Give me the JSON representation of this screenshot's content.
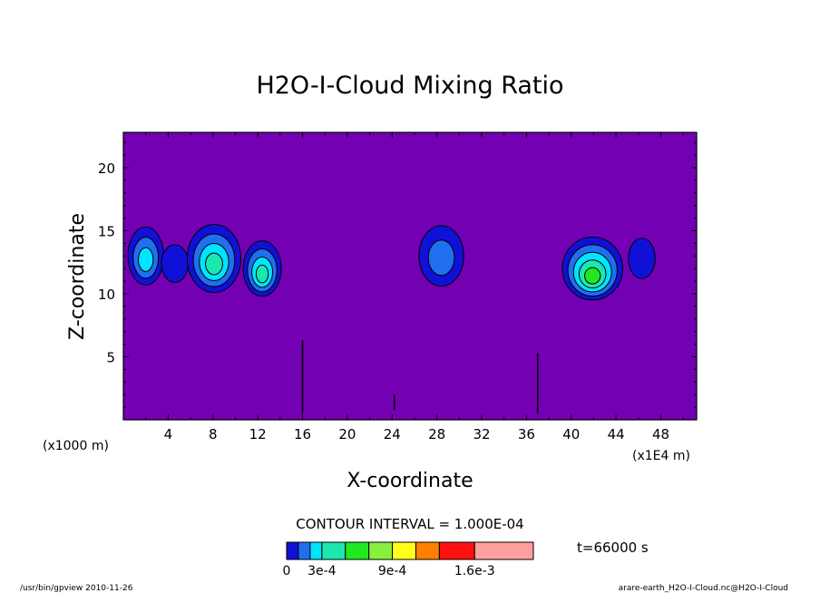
{
  "chart_data": {
    "type": "contour",
    "title": "H2O-I-Cloud Mixing Ratio",
    "xlabel": "X-coordinate",
    "ylabel": "Z-coordinate",
    "x_unit_left": "(x1000 m)",
    "x_unit_right": "(x1E4 m)",
    "xlim": [
      0,
      51.2
    ],
    "ylim": [
      0,
      22.8
    ],
    "xticks": [
      4,
      8,
      12,
      16,
      20,
      24,
      28,
      32,
      36,
      40,
      44,
      48
    ],
    "yticks": [
      5,
      10,
      15,
      20
    ],
    "background_color": "#7400b4",
    "contour_interval_text": "CONTOUR INTERVAL = 1.000E-04",
    "time_text": "t=66000 s",
    "colorbar": {
      "colors": [
        "#7400b4",
        "#1010d6",
        "#1f6ff0",
        "#00e4ff",
        "#19e8b0",
        "#21e821",
        "#86f03c",
        "#ffff19",
        "#ff7f00",
        "#ff1010",
        "#ff9f9f"
      ],
      "labels": [
        "0",
        "3e-4",
        "9e-4",
        "1.6e-3"
      ],
      "label_levels": [
        0,
        0.0003,
        0.0009,
        0.0016
      ]
    },
    "features": [
      {
        "x": 2.0,
        "z": 13.0,
        "rx": 1.6,
        "rz": 2.3,
        "levels": 3
      },
      {
        "x": 4.6,
        "z": 12.4,
        "rx": 1.2,
        "rz": 1.5,
        "levels": 1
      },
      {
        "x": 8.1,
        "z": 12.8,
        "rx": 2.4,
        "rz": 2.7,
        "levels": 4
      },
      {
        "x": 12.4,
        "z": 12.0,
        "rx": 1.7,
        "rz": 2.2,
        "levels": 4
      },
      {
        "x": 28.4,
        "z": 13.0,
        "rx": 2.0,
        "rz": 2.4,
        "levels": 2
      },
      {
        "x": 41.9,
        "z": 12.0,
        "rx": 2.7,
        "rz": 2.5,
        "levels": 5
      },
      {
        "x": 46.3,
        "z": 12.8,
        "rx": 1.2,
        "rz": 1.6,
        "levels": 1
      }
    ]
  },
  "footer_left": "/usr/bin/gpview   2010-11-26",
  "footer_right": "arare-earth_H2O-I-Cloud.nc@H2O-I-Cloud"
}
